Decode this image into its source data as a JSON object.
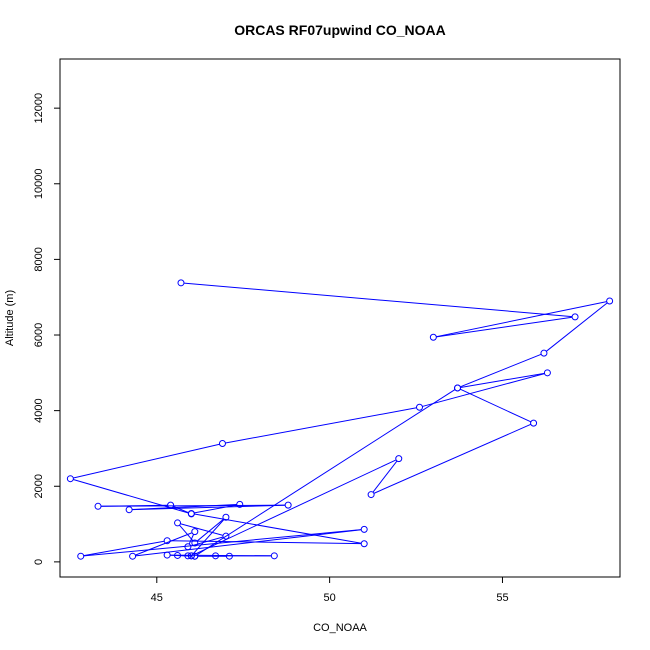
{
  "chart_data": {
    "type": "line",
    "title": "ORCAS RF07upwind CO_NOAA",
    "xlabel": "CO_NOAA",
    "ylabel": "Altitude (m)",
    "xlim": [
      42.2,
      58.4
    ],
    "ylim": [
      -400,
      13300
    ],
    "x_ticks": [
      45,
      50,
      55
    ],
    "y_ticks": [
      0,
      2000,
      4000,
      6000,
      8000,
      10000,
      12000
    ],
    "color": "#0000ff",
    "marker": "open-circle",
    "series": [
      {
        "x": [
          45.7,
          57.1,
          53.0,
          58.1,
          56.2,
          53.7,
          56.3,
          52.6,
          46.9,
          42.5,
          46.0,
          45.4,
          43.3,
          48.8,
          44.2,
          47.4,
          46.0,
          51.0,
          45.3,
          42.8,
          51.0,
          44.3,
          46.1,
          45.9,
          47.0,
          45.6,
          46.1,
          47.0,
          46.0,
          52.0,
          51.2,
          55.9,
          53.7,
          46.1,
          45.3,
          48.4,
          46.7,
          47.1,
          46.1,
          45.9,
          46.0,
          45.6
        ],
        "y": [
          7380,
          6480,
          5940,
          6900,
          5520,
          4600,
          5000,
          4090,
          3130,
          2200,
          1270,
          1500,
          1470,
          1500,
          1380,
          1520,
          1280,
          480,
          560,
          150,
          860,
          150,
          800,
          400,
          680,
          1030,
          500,
          1180,
          160,
          2730,
          1780,
          3670,
          4600,
          150,
          180,
          160,
          160,
          150,
          150,
          160,
          160,
          170
        ]
      }
    ]
  }
}
